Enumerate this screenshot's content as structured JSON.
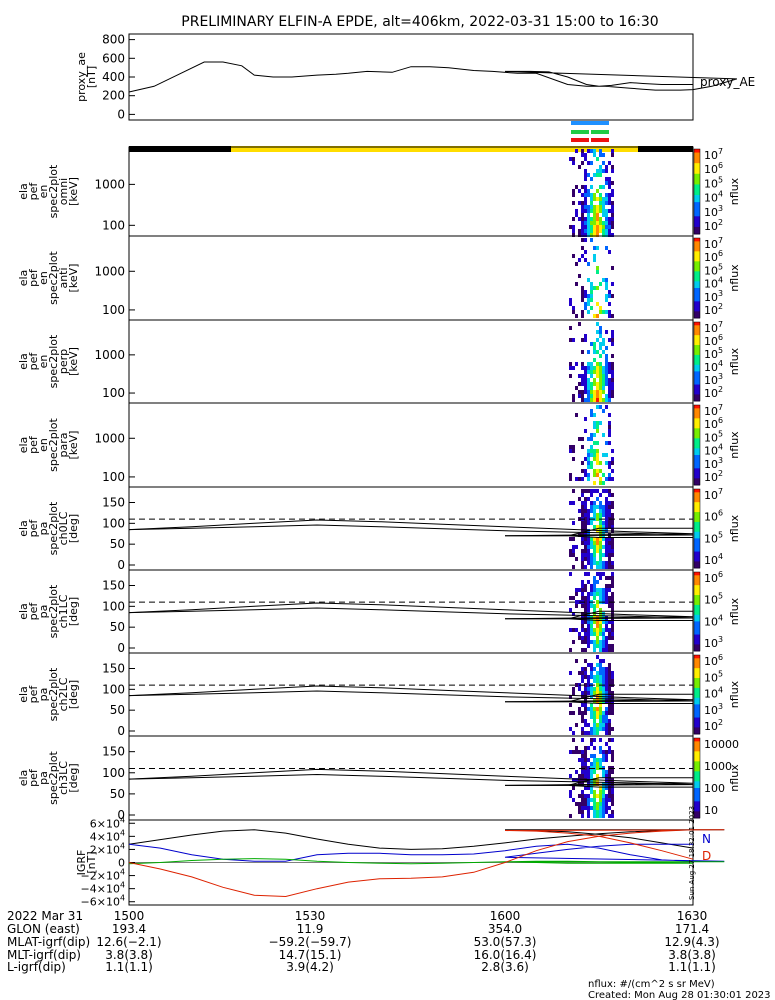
{
  "title": "PRELIMINARY ELFIN-A EPDE, alt=406km, 2022-03-31 15:00 to 16:30",
  "colors": {
    "science_bar": "#ffdd00",
    "attitude_blue": "#1e90ff",
    "attitude_green": "#22cc44",
    "attitude_red": "#ee1111",
    "igrf_n": "#0000cc",
    "igrf_d": "#dd2200",
    "igrf_green": "#00aa00",
    "igrf_black": "#000000"
  },
  "chart_data": [
    {
      "type": "line",
      "name": "proxy_ae",
      "ylabel": [
        "proxy_ae",
        "[nT]"
      ],
      "yticks": [
        "800",
        "600",
        "400",
        "200",
        "0"
      ],
      "ylim": [
        -60,
        860
      ],
      "legend": "proxy_AE",
      "x": [
        1500,
        1504,
        1508,
        1512,
        1515,
        1518,
        1520,
        1523,
        1526,
        1530,
        1533,
        1535,
        1538,
        1542,
        1545,
        1548,
        1551,
        1555,
        1558,
        1562,
        1565,
        1570,
        1573,
        1576,
        1580,
        1582,
        1584,
        1588,
        1590,
        1593,
        1597,
        1600,
        1604,
        1607,
        1610,
        1613,
        1615,
        1617,
        1620,
        1622,
        1625,
        1628,
        1630
      ],
      "values": [
        240,
        300,
        430,
        560,
        560,
        520,
        420,
        400,
        400,
        420,
        430,
        440,
        460,
        450,
        510,
        510,
        500,
        470,
        460,
        440,
        440,
        320,
        300,
        300,
        280,
        270,
        260,
        260,
        265,
        300,
        380,
        460,
        460,
        455,
        400,
        320,
        300,
        310,
        340,
        330,
        320,
        320,
        320
      ]
    },
    {
      "type": "heatmap",
      "name": "omni",
      "ylabel": [
        "ela",
        "pef",
        "en",
        "spec2plot",
        "omni",
        "[keV]"
      ],
      "yticks": [
        "1000",
        "100"
      ],
      "colorbar": {
        "label": "nflux",
        "ticks": [
          "10^7",
          "10^6",
          "10^5",
          "10^4",
          "10^3",
          "10^2"
        ]
      }
    },
    {
      "type": "heatmap",
      "name": "anti",
      "ylabel": [
        "ela",
        "pef",
        "en",
        "spec2plot",
        "anti",
        "[keV]"
      ],
      "yticks": [
        "1000",
        "100"
      ],
      "colorbar": {
        "label": "nflux",
        "ticks": [
          "10^7",
          "10^6",
          "10^5",
          "10^4",
          "10^3",
          "10^2"
        ]
      }
    },
    {
      "type": "heatmap",
      "name": "perp",
      "ylabel": [
        "ela",
        "pef",
        "en",
        "spec2plot",
        "perp",
        "[keV]"
      ],
      "yticks": [
        "1000",
        "100"
      ],
      "colorbar": {
        "label": "nflux",
        "ticks": [
          "10^7",
          "10^6",
          "10^5",
          "10^4",
          "10^3",
          "10^2"
        ]
      }
    },
    {
      "type": "heatmap",
      "name": "para",
      "ylabel": [
        "ela",
        "pef",
        "en",
        "spec2plot",
        "para",
        "[keV]"
      ],
      "yticks": [
        "1000",
        "100"
      ],
      "colorbar": {
        "label": "nflux",
        "ticks": [
          "10^7",
          "10^6",
          "10^5",
          "10^4",
          "10^3",
          "10^2"
        ]
      }
    },
    {
      "type": "heatmap",
      "name": "ch0LC",
      "ylabel": [
        "ela",
        "pef",
        "pa",
        "spec2plot",
        "ch0LC",
        "[deg]"
      ],
      "yticks": [
        "150",
        "100",
        "50",
        "0"
      ],
      "colorbar": {
        "label": "nflux",
        "ticks": [
          "10^7",
          "10^6",
          "10^5",
          "10^4"
        ]
      }
    },
    {
      "type": "heatmap",
      "name": "ch1LC",
      "ylabel": [
        "ela",
        "pef",
        "pa",
        "spec2plot",
        "ch1LC",
        "[deg]"
      ],
      "yticks": [
        "150",
        "100",
        "50",
        "0"
      ],
      "colorbar": {
        "label": "nflux",
        "ticks": [
          "10^6",
          "10^5",
          "10^4",
          "10^3"
        ]
      }
    },
    {
      "type": "heatmap",
      "name": "ch2LC",
      "ylabel": [
        "ela",
        "pef",
        "pa",
        "spec2plot",
        "ch2LC",
        "[deg]"
      ],
      "yticks": [
        "150",
        "100",
        "50",
        "0"
      ],
      "colorbar": {
        "label": "nflux",
        "ticks": [
          "10^6",
          "10^5",
          "10^4",
          "10^3",
          "10^2"
        ]
      }
    },
    {
      "type": "heatmap",
      "name": "ch3LC",
      "ylabel": [
        "ela",
        "pef",
        "pa",
        "spec2plot",
        "ch3LC",
        "[deg]"
      ],
      "yticks": [
        "150",
        "100",
        "50",
        "0"
      ],
      "colorbar": {
        "label": "nflux",
        "ticks": [
          "10000",
          "1000",
          "100",
          "10"
        ]
      }
    },
    {
      "type": "line",
      "name": "IGRF",
      "ylabel": [
        "IGRF",
        "[nT]"
      ],
      "yticks": [
        "6×10^4",
        "4×10^4",
        "2×10^4",
        "0",
        "−2×10^4",
        "−4×10^4",
        "−6×10^4"
      ],
      "ylim": [
        -65000,
        65000
      ],
      "legend_labels": [
        "N",
        "D"
      ],
      "side_note": "Sun Aug 27 18:32:01 2023",
      "x": [
        1500,
        1505,
        1510,
        1515,
        1520,
        1525,
        1530,
        1535,
        1540,
        1545,
        1550,
        1555,
        1560,
        1565,
        1570,
        1575,
        1580,
        1585,
        1590,
        1595,
        1600,
        1605,
        1610,
        1615,
        1620,
        1625,
        1630
      ],
      "series": [
        {
          "color": "black",
          "values": [
            28000,
            35000,
            42000,
            48000,
            50000,
            45000,
            36000,
            28000,
            22000,
            20000,
            21000,
            25000,
            30000,
            36000,
            40000,
            44000,
            47000,
            49000,
            50000,
            50000,
            50000,
            49000,
            47000,
            43000,
            38000,
            30000,
            22000
          ]
        },
        {
          "color": "blue",
          "values": [
            28000,
            22000,
            12000,
            5000,
            2000,
            2000,
            12000,
            14000,
            14000,
            12000,
            12000,
            13000,
            18000,
            25000,
            28000,
            22000,
            12000,
            4000,
            2000,
            2000,
            8000,
            14000,
            20000,
            25000,
            28000,
            28000,
            28000
          ]
        },
        {
          "color": "green",
          "values": [
            -2000,
            0,
            3000,
            5000,
            6000,
            5000,
            2000,
            0,
            -1000,
            -2000,
            -1000,
            0,
            1000,
            2000,
            2000,
            1000,
            0,
            0,
            1000,
            1000,
            1000,
            0,
            -1000,
            -1000,
            -1000,
            -1000,
            -1000
          ]
        },
        {
          "color": "red",
          "values": [
            0,
            -10000,
            -22000,
            -38000,
            -50000,
            -52000,
            -40000,
            -30000,
            -25000,
            -24000,
            -22000,
            -15000,
            0,
            18000,
            32000,
            40000,
            45000,
            48000,
            50000,
            50000,
            49000,
            48000,
            45000,
            40000,
            30000,
            18000,
            5000
          ]
        }
      ]
    }
  ],
  "orbit_table": {
    "rows": [
      {
        "label": "2022 Mar 31",
        "values": [
          "1500",
          "1530",
          "1600",
          "1630"
        ]
      },
      {
        "label": "GLON (east)",
        "values": [
          "193.4",
          "11.9",
          "354.0",
          "171.4"
        ]
      },
      {
        "label": "MLAT-igrf(dip)",
        "values": [
          "12.6(−2.1)",
          "−59.2(−59.7)",
          "53.0(57.3)",
          "12.9(4.3)"
        ]
      },
      {
        "label": "MLT-igrf(dip)",
        "values": [
          "3.8(3.8)",
          "14.7(15.1)",
          "16.0(16.4)",
          "3.8(3.8)"
        ]
      },
      {
        "label": "L-igrf(dip)",
        "values": [
          "1.1(1.1)",
          "3.9(4.2)",
          "2.8(3.6)",
          "1.1(1.1)"
        ]
      }
    ]
  },
  "footer": {
    "units": "nflux: #/(cm^2 s sr MeV)",
    "created": "Created: Mon Aug 28 01:30:01 2023"
  }
}
